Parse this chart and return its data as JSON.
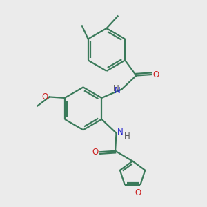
{
  "background_color": "#ebebeb",
  "bond_color": "#3a7a5a",
  "n_color": "#2222cc",
  "o_color": "#cc2222",
  "lw": 1.6,
  "figsize": [
    3.0,
    3.0
  ],
  "dpi": 100,
  "xlim": [
    0,
    10
  ],
  "ylim": [
    0,
    10
  ]
}
